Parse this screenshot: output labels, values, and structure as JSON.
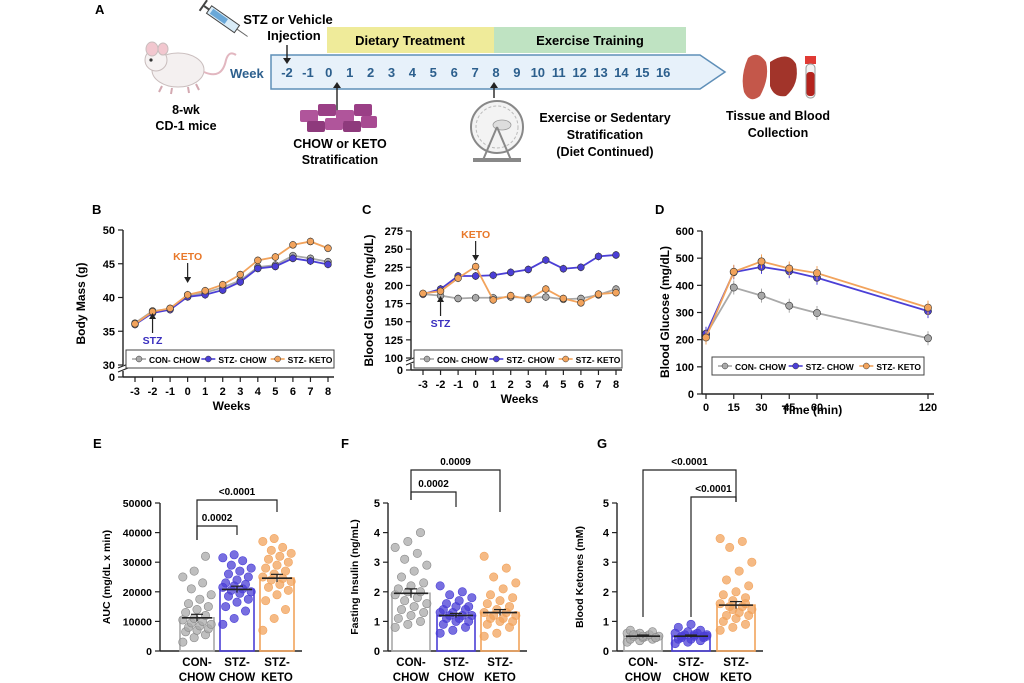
{
  "figure": {
    "panel_a": {
      "label": "A",
      "mouse_label_1": "8-wk",
      "mouse_label_2": "CD-1 mice",
      "injection_label_1": "STZ or Vehicle",
      "injection_label_2": "Injection",
      "dietary_label": "Dietary Treatment",
      "exercise_label": "Exercise Training",
      "week_word": "Week",
      "weeks": [
        "-2",
        "-1",
        "0",
        "1",
        "2",
        "3",
        "4",
        "5",
        "6",
        "7",
        "8",
        "9",
        "10",
        "11",
        "12",
        "13",
        "14",
        "15",
        "16"
      ],
      "chow_label_1": "CHOW or KETO",
      "chow_label_2": "Stratification",
      "ex_label_1": "Exercise or Sedentary",
      "ex_label_2": "Stratification",
      "ex_label_3": "(Diet Continued)",
      "tissue_label_1": "Tissue and Blood",
      "tissue_label_2": "Collection",
      "colors": {
        "dietary": "#efeb9a",
        "exercise": "#bfe3c2",
        "arrow_fill": "#e7f1fa",
        "arrow_stroke": "#5f8fb8",
        "week_text": "#2c5f8d"
      }
    },
    "colors": {
      "con": "#a9a9a9",
      "stz_chow": "#4b3fd6",
      "stz_keto": "#f2a35c",
      "keto_text": "#e8782a",
      "stz_text": "#3a2fbf"
    },
    "legend_labels": [
      "CON- CHOW",
      "STZ- CHOW",
      "STZ- KETO"
    ]
  },
  "chart_data": [
    {
      "panel": "B",
      "type": "line",
      "xlabel": "Weeks",
      "ylabel": "Body Mass (g)",
      "x": [
        -3,
        -2,
        -1,
        0,
        1,
        2,
        3,
        4,
        5,
        6,
        7,
        8
      ],
      "ylim": [
        30,
        50
      ],
      "yticks": [
        30,
        35,
        40,
        45,
        50
      ],
      "xticks": [
        -3,
        -2,
        -1,
        0,
        1,
        2,
        3,
        4,
        5,
        6,
        7,
        8
      ],
      "axis_break_label": "0",
      "series": [
        {
          "name": "CON- CHOW",
          "values": [
            36.2,
            38.0,
            38.3,
            40.2,
            40.7,
            41.5,
            42.5,
            44.5,
            44.8,
            46.2,
            45.8,
            45.3
          ]
        },
        {
          "name": "STZ- CHOW",
          "values": [
            36.0,
            37.7,
            38.2,
            40.1,
            40.4,
            41.1,
            42.3,
            44.3,
            44.6,
            45.8,
            45.4,
            44.9
          ]
        },
        {
          "name": "STZ- KETO",
          "values": [
            36.1,
            37.9,
            38.4,
            40.4,
            41.0,
            41.9,
            43.4,
            45.5,
            46.0,
            47.8,
            48.3,
            47.3
          ]
        }
      ],
      "annotations": [
        {
          "text": "KETO",
          "x": 0
        },
        {
          "text": "STZ",
          "x": -2
        }
      ]
    },
    {
      "panel": "C",
      "type": "line",
      "xlabel": "Weeks",
      "ylabel": "Blood Glucose (mg/dL)",
      "x": [
        -3,
        -2,
        -1,
        0,
        1,
        2,
        3,
        4,
        5,
        6,
        7,
        8
      ],
      "ylim": [
        100,
        275
      ],
      "yticks": [
        100,
        125,
        150,
        175,
        200,
        225,
        250,
        275
      ],
      "xticks": [
        -3,
        -2,
        -1,
        0,
        1,
        2,
        3,
        4,
        5,
        6,
        7,
        8
      ],
      "axis_break_label": "0",
      "series": [
        {
          "name": "CON- CHOW",
          "values": [
            188,
            186,
            182,
            183,
            183,
            184,
            183,
            184,
            181,
            182,
            187,
            195
          ]
        },
        {
          "name": "STZ- CHOW",
          "values": [
            188,
            195,
            213,
            213,
            214,
            218,
            222,
            235,
            223,
            225,
            240,
            242
          ]
        },
        {
          "name": "STZ- KETO",
          "values": [
            189,
            192,
            210,
            226,
            180,
            186,
            181,
            195,
            182,
            176,
            188,
            190
          ]
        }
      ],
      "annotations": [
        {
          "text": "KETO",
          "x": 0
        },
        {
          "text": "STZ",
          "x": -2
        }
      ]
    },
    {
      "panel": "D",
      "type": "line",
      "xlabel": "Time (min)",
      "ylabel": "Blood Glucose (mg/dL)",
      "x": [
        0,
        15,
        30,
        45,
        60,
        120
      ],
      "ylim": [
        0,
        600
      ],
      "yticks": [
        0,
        100,
        200,
        300,
        400,
        500,
        600
      ],
      "xticks": [
        0,
        15,
        30,
        45,
        60,
        120
      ],
      "series": [
        {
          "name": "CON- CHOW",
          "values": [
            218,
            392,
            362,
            325,
            298,
            205
          ]
        },
        {
          "name": "STZ- CHOW",
          "values": [
            222,
            448,
            468,
            452,
            428,
            305
          ]
        },
        {
          "name": "STZ- KETO",
          "values": [
            208,
            450,
            488,
            462,
            445,
            318
          ]
        }
      ]
    },
    {
      "panel": "E",
      "type": "bar",
      "xlabel": "",
      "ylabel": "AUC (mg/dL x min)",
      "categories": [
        [
          "CON-",
          "CHOW"
        ],
        [
          "STZ-",
          "CHOW"
        ],
        [
          "STZ-",
          "KETO"
        ]
      ],
      "values": [
        11200,
        20800,
        24600
      ],
      "sem": [
        1200,
        1100,
        1300
      ],
      "ylim": [
        0,
        50000
      ],
      "yticks": [
        0,
        10000,
        20000,
        30000,
        40000,
        50000
      ],
      "points": [
        [
          3000,
          4500,
          5500,
          6500,
          7000,
          7500,
          8000,
          8500,
          9000,
          9500,
          10000,
          10500,
          11000,
          12000,
          13000,
          14000,
          15000,
          16000,
          17500,
          19000,
          21000,
          23000,
          25000,
          27000,
          32000
        ],
        [
          9000,
          11000,
          13500,
          15000,
          16500,
          17500,
          18500,
          19500,
          20000,
          20500,
          21000,
          21500,
          22000,
          22500,
          23000,
          24000,
          25000,
          26000,
          27000,
          28000,
          29000,
          30500,
          31500,
          32500
        ],
        [
          7000,
          11000,
          14000,
          17000,
          19000,
          20500,
          21500,
          22500,
          23500,
          24000,
          24500,
          25000,
          26000,
          27000,
          28000,
          29000,
          30000,
          31000,
          32000,
          33000,
          34000,
          35000,
          37000,
          38000
        ]
      ],
      "comparisons": [
        {
          "text": "0.0002",
          "from": 0,
          "to": 1
        },
        {
          "text": "<0.0001",
          "from": 0,
          "to": 2
        }
      ]
    },
    {
      "panel": "F",
      "type": "bar",
      "xlabel": "",
      "ylabel": "Fasting Insulin (ng/mL)",
      "categories": [
        [
          "CON-",
          "CHOW"
        ],
        [
          "STZ-",
          "CHOW"
        ],
        [
          "STZ-",
          "KETO"
        ]
      ],
      "values": [
        1.95,
        1.2,
        1.3
      ],
      "sem": [
        0.15,
        0.07,
        0.1
      ],
      "ylim": [
        0,
        5
      ],
      "yticks": [
        0,
        1,
        2,
        3,
        4,
        5
      ],
      "points": [
        [
          0.8,
          0.9,
          1.0,
          1.1,
          1.2,
          1.3,
          1.4,
          1.5,
          1.6,
          1.7,
          1.8,
          1.9,
          2.0,
          2.0,
          2.1,
          2.2,
          2.3,
          2.5,
          2.7,
          2.9,
          3.1,
          3.3,
          3.5,
          3.7,
          4.0
        ],
        [
          0.6,
          0.7,
          0.8,
          0.9,
          1.0,
          1.0,
          1.1,
          1.1,
          1.2,
          1.2,
          1.2,
          1.3,
          1.3,
          1.4,
          1.4,
          1.5,
          1.5,
          1.6,
          1.7,
          1.8,
          1.9,
          2.0,
          2.2
        ],
        [
          0.5,
          0.6,
          0.8,
          0.9,
          1.0,
          1.0,
          1.1,
          1.1,
          1.2,
          1.2,
          1.3,
          1.3,
          1.4,
          1.5,
          1.6,
          1.7,
          1.8,
          1.9,
          2.1,
          2.3,
          2.5,
          2.8,
          3.2
        ]
      ],
      "comparisons": [
        {
          "text": "0.0002",
          "from": 0,
          "to": 1
        },
        {
          "text": "0.0009",
          "from": 0,
          "to": 2
        }
      ]
    },
    {
      "panel": "G",
      "type": "bar",
      "xlabel": "",
      "ylabel": "Blood Ketones (mM)",
      "categories": [
        [
          "CON-",
          "CHOW"
        ],
        [
          "STZ-",
          "CHOW"
        ],
        [
          "STZ-",
          "KETO"
        ]
      ],
      "values": [
        0.5,
        0.5,
        1.55
      ],
      "sem": [
        0.04,
        0.04,
        0.12
      ],
      "ylim": [
        0,
        5
      ],
      "yticks": [
        0,
        1,
        2,
        3,
        4,
        5
      ],
      "points": [
        [
          0.3,
          0.35,
          0.4,
          0.4,
          0.45,
          0.45,
          0.5,
          0.5,
          0.5,
          0.55,
          0.55,
          0.6,
          0.6,
          0.65,
          0.7,
          0.5,
          0.45,
          0.55
        ],
        [
          0.25,
          0.3,
          0.35,
          0.4,
          0.4,
          0.45,
          0.5,
          0.5,
          0.55,
          0.55,
          0.6,
          0.6,
          0.65,
          0.7,
          0.8,
          0.9,
          0.5,
          0.45,
          0.55,
          0.5
        ],
        [
          0.7,
          0.8,
          0.9,
          1.0,
          1.1,
          1.2,
          1.2,
          1.3,
          1.4,
          1.5,
          1.5,
          1.6,
          1.7,
          1.8,
          1.9,
          2.0,
          2.2,
          2.4,
          2.7,
          3.0,
          3.5,
          3.7,
          3.8,
          1.4,
          1.6
        ]
      ],
      "comparisons": [
        {
          "text": "0.0001",
          "prefix": "<",
          "from": 1,
          "to": 2
        },
        {
          "text": "0.0001",
          "prefix": "<",
          "from": 0,
          "to": 2
        }
      ]
    }
  ]
}
